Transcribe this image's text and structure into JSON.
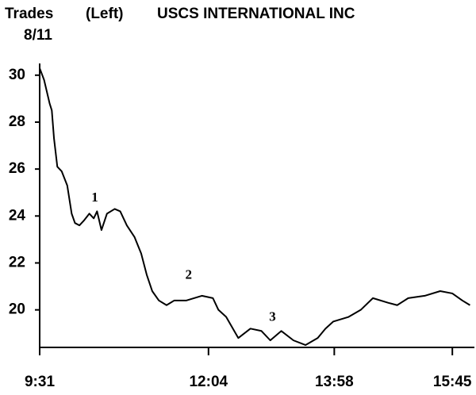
{
  "chart_data": {
    "type": "line",
    "series_label": "Trades",
    "axis_side": "(Left)",
    "title": "USCS INTERNATIONAL INC",
    "date": "8/11",
    "x": [
      571,
      575,
      580,
      582,
      584,
      587,
      591,
      596,
      600,
      603,
      607,
      611,
      616,
      620,
      623,
      627,
      632,
      639,
      644,
      650,
      657,
      663,
      668,
      673,
      679,
      686,
      693,
      704,
      718,
      728,
      733,
      740,
      751,
      762,
      772,
      780,
      790,
      801,
      812,
      823,
      830,
      837,
      851,
      862,
      873,
      887,
      895,
      905,
      920,
      934,
      945,
      954,
      961
    ],
    "series": [
      {
        "name": "Trades",
        "color": "#000000",
        "values": [
          30.3,
          29.8,
          28.8,
          28.5,
          27.3,
          26.1,
          25.9,
          25.3,
          24.1,
          23.7,
          23.6,
          23.8,
          24.1,
          23.9,
          24.2,
          23.4,
          24.1,
          24.3,
          24.2,
          23.6,
          23.1,
          22.4,
          21.5,
          20.8,
          20.4,
          20.2,
          20.4,
          20.4,
          20.6,
          20.5,
          20.0,
          19.7,
          18.8,
          19.2,
          19.1,
          18.7,
          19.1,
          18.7,
          18.5,
          18.8,
          19.2,
          19.5,
          19.7,
          20.0,
          20.5,
          20.3,
          20.2,
          20.5,
          20.6,
          20.8,
          20.7,
          20.4,
          20.2
        ]
      }
    ],
    "xlim": [
      571,
      965
    ],
    "xticks": [
      {
        "value": 571,
        "label": "9:31"
      },
      {
        "value": 724,
        "label": "12:04"
      },
      {
        "value": 838,
        "label": "13:58"
      },
      {
        "value": 945,
        "label": "15:45"
      }
    ],
    "ylim": [
      18.4,
      30.5
    ],
    "yticks": [
      30,
      28,
      26,
      24,
      22,
      20
    ],
    "annotations": [
      {
        "text": "1",
        "x": 621,
        "y": 24.75
      },
      {
        "text": "2",
        "x": 706,
        "y": 21.46
      },
      {
        "text": "3",
        "x": 782,
        "y": 19.66
      }
    ]
  }
}
